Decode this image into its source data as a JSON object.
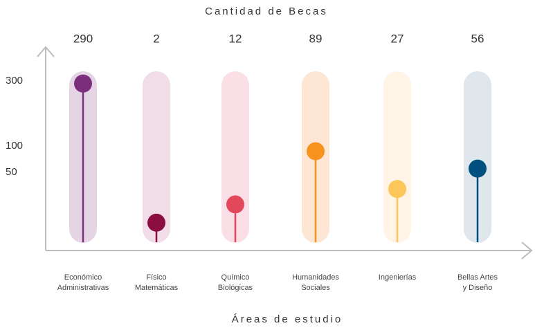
{
  "chart_data": {
    "type": "lollipop",
    "title": "Cantidad de Becas",
    "x_label": "Áreas de estudio",
    "categories": [
      [
        "Económico",
        "Administrativas"
      ],
      [
        "Físico",
        "Matemáticas"
      ],
      [
        "Químico",
        "Biológicas"
      ],
      [
        "Humanidades",
        "Sociales"
      ],
      [
        "Ingenierías"
      ],
      [
        "Bellas Artes",
        "y Diseño"
      ]
    ],
    "values": [
      290,
      2,
      12,
      89,
      27,
      56
    ],
    "colors": [
      "#7a2e7b",
      "#8c0d3f",
      "#e3475a",
      "#f7931e",
      "#fdc65a",
      "#00507f"
    ],
    "track_colors": [
      "#e5d4e4",
      "#f1dde8",
      "#fadfe6",
      "#fde7d4",
      "#fff4e6",
      "#dfe6ec"
    ],
    "ylim": [
      0,
      300
    ],
    "yticks": [
      300,
      100,
      50
    ],
    "scale": "sqrt"
  }
}
